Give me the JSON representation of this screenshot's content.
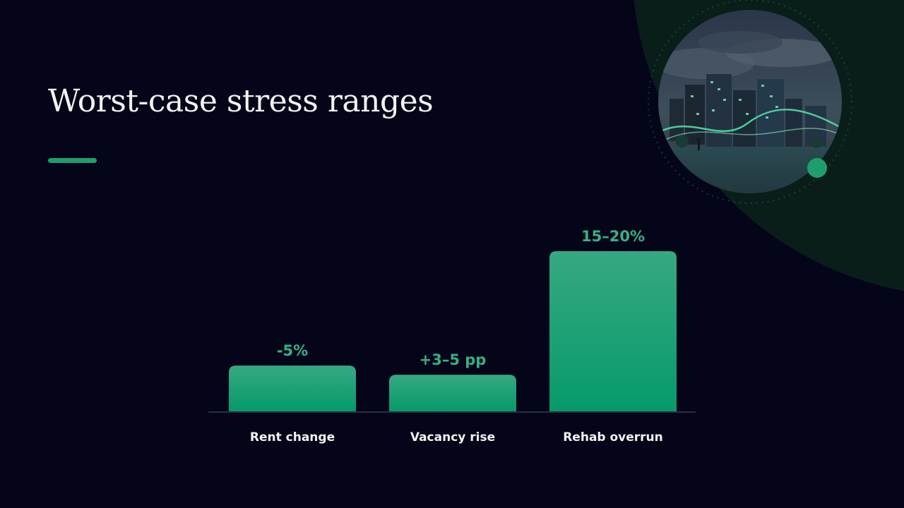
{
  "slide": {
    "title": "Worst-case stress ranges"
  },
  "image": {
    "icon": "city-buildings-illustration-icon"
  },
  "colors": {
    "background": "#05051a",
    "accent": "#1f9e6c",
    "bar_top": "#37a882",
    "bar_bottom": "#069a6a",
    "value_label": "#36b184",
    "axis": "#2a2f40",
    "text": "#f2f2f2"
  },
  "chart_data": {
    "type": "bar",
    "categories": [
      "Rent change",
      "Vacancy rise",
      "Rehab overrun"
    ],
    "values": [
      5,
      4,
      17.5
    ],
    "value_labels": [
      "-5%",
      "+3–5 pp",
      "15–20%"
    ],
    "title": "",
    "xlabel": "",
    "ylabel": "",
    "ylim": [
      0,
      17.5
    ],
    "grid": false,
    "legend": "none"
  }
}
